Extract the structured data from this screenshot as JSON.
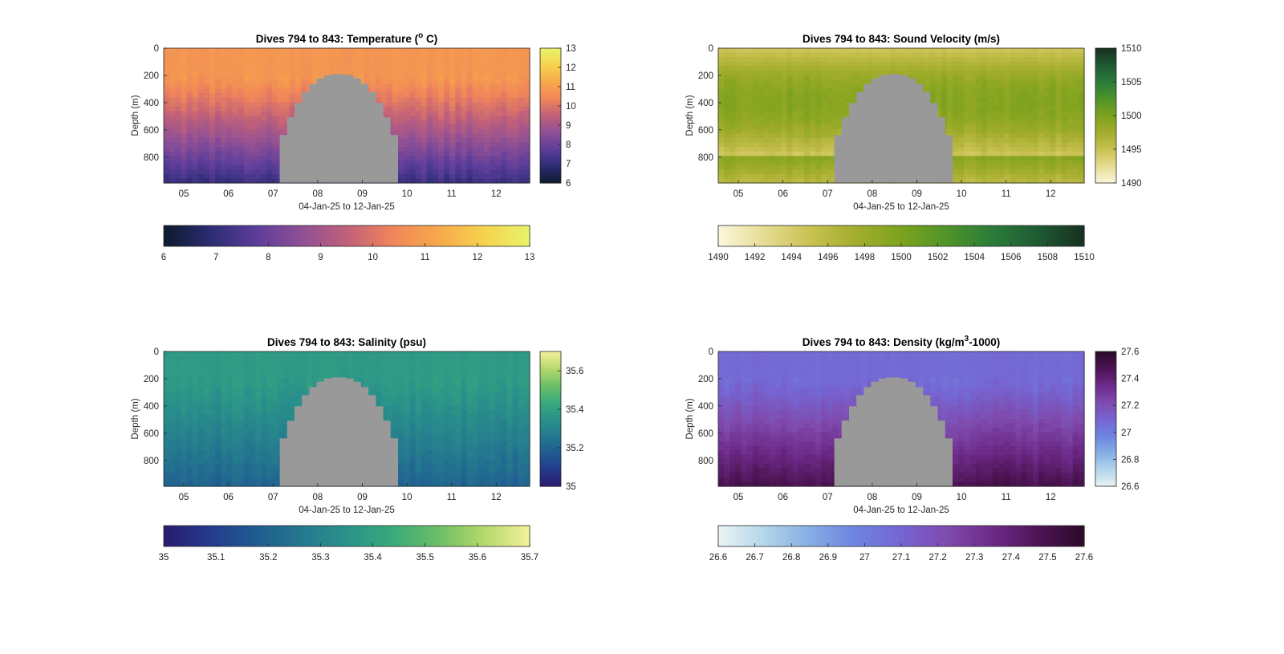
{
  "chart_data": [
    {
      "type": "heatmap",
      "id": "temperature",
      "title": "Dives 794 to 843: Temperature (°C)",
      "title_parts": {
        "prefix": "Dives 794 to 843: Temperature (",
        "superscript": "o",
        "suffix": " C)"
      },
      "xlabel": "04-Jan-25 to 12-Jan-25",
      "ylabel": "Depth (m)",
      "x_ticks": [
        "05",
        "06",
        "07",
        "08",
        "09",
        "10",
        "11",
        "12"
      ],
      "y_ticks": [
        "0",
        "200",
        "400",
        "600",
        "800"
      ],
      "ylim": [
        0,
        990
      ],
      "y_reversed": true,
      "xlim_days": [
        4.55,
        12.75
      ],
      "color_range": [
        6,
        13
      ],
      "side_colorbar_ticks": [
        "6",
        "7",
        "8",
        "9",
        "10",
        "11",
        "12",
        "13"
      ],
      "bottom_colorbar_ticks": [
        "6",
        "7",
        "8",
        "9",
        "10",
        "11",
        "12",
        "13"
      ],
      "colormap": [
        "#0d1a2b",
        "#2b2c72",
        "#5b3d9a",
        "#8e4f96",
        "#c0607a",
        "#f0855a",
        "#f7a84a",
        "#f6d24e",
        "#e9f36a"
      ],
      "surface_value": 10.8,
      "bottom_value": 7.1,
      "gap_color": "#999999",
      "no_data_interval_days": [
        7.15,
        9.8
      ],
      "no_data_top_depth_m": 190
    },
    {
      "type": "heatmap",
      "id": "sound_velocity",
      "title": "Dives 794 to 843: Sound Velocity (m/s)",
      "xlabel": "04-Jan-25 to 12-Jan-25",
      "ylabel": "Depth (m)",
      "x_ticks": [
        "05",
        "06",
        "07",
        "08",
        "09",
        "10",
        "11",
        "12"
      ],
      "y_ticks": [
        "0",
        "200",
        "400",
        "600",
        "800"
      ],
      "ylim": [
        0,
        990
      ],
      "y_reversed": true,
      "xlim_days": [
        4.55,
        12.75
      ],
      "color_range": [
        1490,
        1510
      ],
      "side_colorbar_ticks": [
        "1490",
        "1495",
        "1500",
        "1505",
        "1510"
      ],
      "bottom_colorbar_ticks": [
        "1490",
        "1492",
        "1494",
        "1496",
        "1498",
        "1500",
        "1502",
        "1504",
        "1506",
        "1508",
        "1510"
      ],
      "colormap": [
        "#fbf7dd",
        "#e6dc94",
        "#c9c152",
        "#a3ad2c",
        "#7da21d",
        "#4f9428",
        "#2a7c39",
        "#1f5a33",
        "#17301f"
      ],
      "surface_value": 1494.5,
      "mid_value": 1499.5,
      "bottom_value": 1496.0,
      "gap_color": "#999999",
      "no_data_interval_days": [
        7.15,
        9.8
      ],
      "no_data_top_depth_m": 190
    },
    {
      "type": "heatmap",
      "id": "salinity",
      "title": "Dives 794 to 843: Salinity (psu)",
      "xlabel": "04-Jan-25 to 12-Jan-25",
      "ylabel": "Depth (m)",
      "x_ticks": [
        "05",
        "06",
        "07",
        "08",
        "09",
        "10",
        "11",
        "12"
      ],
      "y_ticks": [
        "0",
        "200",
        "400",
        "600",
        "800"
      ],
      "ylim": [
        0,
        990
      ],
      "y_reversed": true,
      "xlim_days": [
        4.55,
        12.75
      ],
      "color_range": [
        35,
        35.7
      ],
      "side_colorbar_ticks": [
        "35",
        "35.2",
        "35.4",
        "35.6"
      ],
      "side_colorbar_values": [
        35,
        35.2,
        35.4,
        35.6
      ],
      "bottom_colorbar_ticks": [
        "35",
        "35.1",
        "35.2",
        "35.3",
        "35.4",
        "35.5",
        "35.6",
        "35.7"
      ],
      "colormap": [
        "#2b1b6e",
        "#243a8c",
        "#1f5b91",
        "#24788f",
        "#2a928a",
        "#3aa97c",
        "#6cbf66",
        "#b4d86c",
        "#f3f19c"
      ],
      "surface_value": 35.38,
      "bottom_value": 35.2,
      "gap_color": "#999999",
      "no_data_interval_days": [
        7.15,
        9.8
      ],
      "no_data_top_depth_m": 190
    },
    {
      "type": "heatmap",
      "id": "density",
      "title": "Dives 794 to 843: Density (kg/m³-1000)",
      "title_parts": {
        "prefix": "Dives 794 to 843: Density (kg/m",
        "superscript": "3",
        "suffix": "-1000)"
      },
      "xlabel": "04-Jan-25 to 12-Jan-25",
      "ylabel": "Depth (m)",
      "x_ticks": [
        "05",
        "06",
        "07",
        "08",
        "09",
        "10",
        "11",
        "12"
      ],
      "y_ticks": [
        "0",
        "200",
        "400",
        "600",
        "800"
      ],
      "ylim": [
        0,
        990
      ],
      "y_reversed": true,
      "xlim_days": [
        4.55,
        12.75
      ],
      "color_range": [
        26.6,
        27.6
      ],
      "side_colorbar_ticks": [
        "26.6",
        "26.8",
        "27",
        "27.2",
        "27.4",
        "27.6"
      ],
      "bottom_colorbar_ticks": [
        "26.6",
        "26.7",
        "26.8",
        "26.9",
        "27",
        "27.1",
        "27.2",
        "27.3",
        "27.4",
        "27.5",
        "27.6"
      ],
      "colormap": [
        "#eaf4f4",
        "#b3d6ea",
        "#85aee4",
        "#6e84df",
        "#7565d2",
        "#7f4bae",
        "#6d2a88",
        "#4e1455",
        "#2a0a28"
      ],
      "surface_value": 27.08,
      "bottom_value": 27.5,
      "gap_color": "#999999",
      "no_data_interval_days": [
        7.15,
        9.8
      ],
      "no_data_top_depth_m": 190
    }
  ]
}
